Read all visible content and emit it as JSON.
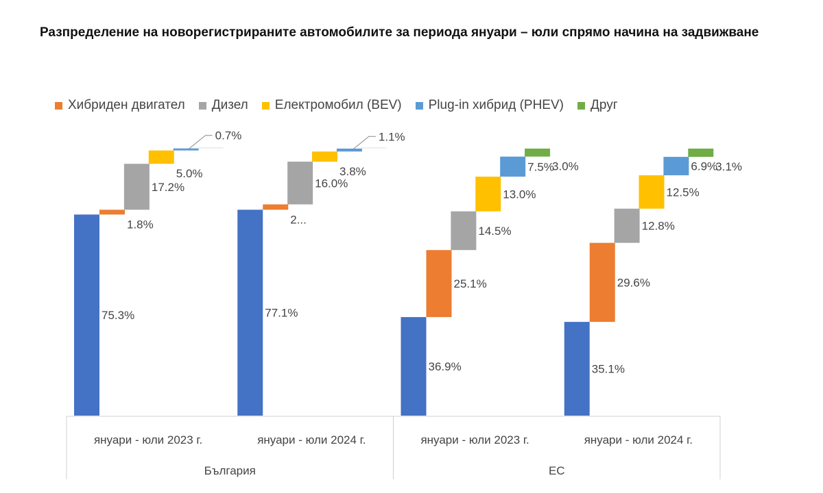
{
  "title": "Разпределение на новорегистрираните автомобилите за периода януари – юли спрямо начина на задвижване",
  "chart_data": {
    "type": "bar",
    "subtype": "stacked-waterfall",
    "title": "Разпределение на новорегистрираните автомобилите за периода януари – юли спрямо начина на задвижване",
    "legend_position": "top",
    "grid": false,
    "ylim": [
      0,
      100
    ],
    "unit": "%",
    "groups": [
      "България",
      "ЕС"
    ],
    "categories": [
      "януари - юли 2023 г.",
      "януари - юли 2024 г.",
      "януари - юли 2023 г.",
      "януари - юли 2024 г."
    ],
    "category_group": [
      0,
      0,
      1,
      1
    ],
    "base": {
      "values": [
        75.3,
        77.1,
        36.9,
        35.1
      ],
      "labels": [
        "75.3%",
        "77.1%",
        "36.9%",
        "35.1%"
      ],
      "color": "#4472C4"
    },
    "series": [
      {
        "name": "Хибриден двигател",
        "color": "#ED7D31",
        "values": [
          1.8,
          2.0,
          25.1,
          29.6
        ],
        "labels": [
          "1.8%",
          "2...",
          "25.1%",
          "29.6%"
        ]
      },
      {
        "name": "Дизел",
        "color": "#A5A5A5",
        "values": [
          17.2,
          16.0,
          14.5,
          12.8
        ],
        "labels": [
          "17.2%",
          "16.0%",
          "14.5%",
          "12.8%"
        ]
      },
      {
        "name": "Електромобил (BEV)",
        "color": "#FFC000",
        "values": [
          5.0,
          3.8,
          13.0,
          12.5
        ],
        "labels": [
          "5.0%",
          "3.8%",
          "13.0%",
          "12.5%"
        ]
      },
      {
        "name": "Plug-in хибрид (PHEV)",
        "color": "#5B9BD5",
        "values": [
          0.7,
          1.1,
          7.5,
          6.9
        ],
        "labels": [
          "0.7%",
          "1.1%",
          "7.5%",
          "6.9%"
        ]
      },
      {
        "name": "Друг",
        "color": "#70AD47",
        "values": [
          0,
          0,
          3.0,
          3.1
        ],
        "labels": [
          "",
          "",
          "3.0%",
          "3.1%"
        ]
      }
    ]
  }
}
